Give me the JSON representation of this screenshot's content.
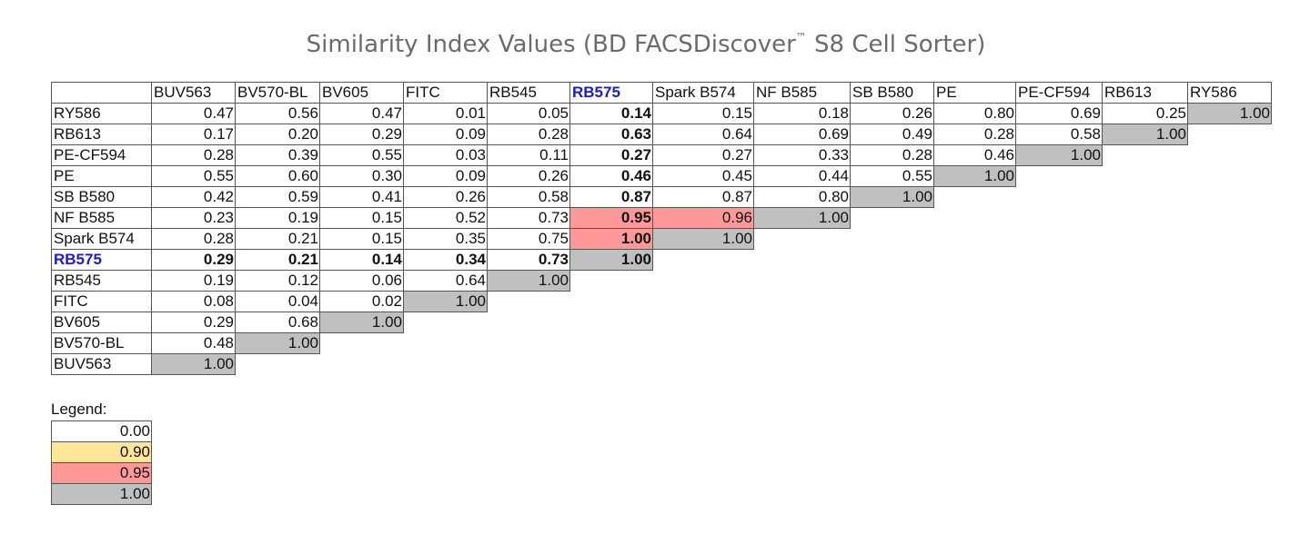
{
  "title": "Similarity Index Values (BD FACSDiscover",
  "title_tm": "™",
  "title_suffix": " S8 Cell Sorter)",
  "columns": [
    "BUV563",
    "BV570-BL",
    "BV605",
    "FITC",
    "RB545",
    "RB575",
    "Spark B574",
    "NF B585",
    "SB B580",
    "PE",
    "PE-CF594",
    "RB613",
    "RY586"
  ],
  "highlight_label": "RB575",
  "rows": [
    {
      "label": "RY586",
      "values": [
        "0.47",
        "0.56",
        "0.47",
        "0.01",
        "0.05",
        "0.14",
        "0.15",
        "0.18",
        "0.26",
        "0.80",
        "0.69",
        "0.25",
        "1.00"
      ]
    },
    {
      "label": "RB613",
      "values": [
        "0.17",
        "0.20",
        "0.29",
        "0.09",
        "0.28",
        "0.63",
        "0.64",
        "0.69",
        "0.49",
        "0.28",
        "0.58",
        "1.00"
      ]
    },
    {
      "label": "PE-CF594",
      "values": [
        "0.28",
        "0.39",
        "0.55",
        "0.03",
        "0.11",
        "0.27",
        "0.27",
        "0.33",
        "0.28",
        "0.46",
        "1.00"
      ]
    },
    {
      "label": "PE",
      "values": [
        "0.55",
        "0.60",
        "0.30",
        "0.09",
        "0.26",
        "0.46",
        "0.45",
        "0.44",
        "0.55",
        "1.00"
      ]
    },
    {
      "label": "SB B580",
      "values": [
        "0.42",
        "0.59",
        "0.41",
        "0.26",
        "0.58",
        "0.87",
        "0.87",
        "0.80",
        "1.00"
      ]
    },
    {
      "label": "NF B585",
      "values": [
        "0.23",
        "0.19",
        "0.15",
        "0.52",
        "0.73",
        "0.95",
        "0.96",
        "1.00"
      ]
    },
    {
      "label": "Spark B574",
      "values": [
        "0.28",
        "0.21",
        "0.15",
        "0.35",
        "0.75",
        "1.00",
        "1.00"
      ]
    },
    {
      "label": "RB575",
      "values": [
        "0.29",
        "0.21",
        "0.14",
        "0.34",
        "0.73",
        "1.00"
      ]
    },
    {
      "label": "RB545",
      "values": [
        "0.19",
        "0.12",
        "0.06",
        "0.64",
        "1.00"
      ]
    },
    {
      "label": "FITC",
      "values": [
        "0.08",
        "0.04",
        "0.02",
        "1.00"
      ]
    },
    {
      "label": "BV605",
      "values": [
        "0.29",
        "0.68",
        "1.00"
      ]
    },
    {
      "label": "BV570-BL",
      "values": [
        "0.48",
        "1.00"
      ]
    },
    {
      "label": "BUV563",
      "values": [
        "1.00"
      ]
    }
  ],
  "legend": {
    "title": "Legend:",
    "items": [
      {
        "value": "0.00",
        "color": "#ffffff"
      },
      {
        "value": "0.90",
        "color": "#ffe699"
      },
      {
        "value": "0.95",
        "color": "#ff9999"
      },
      {
        "value": "1.00",
        "color": "#c0c0c0"
      }
    ]
  },
  "colors": {
    "title": "#6b6b6b",
    "highlight_text": "#1a1ad6",
    "diag_gray": "#c0c0c0",
    "high_red": "#ff9999",
    "mid_yellow": "#ffe699"
  }
}
